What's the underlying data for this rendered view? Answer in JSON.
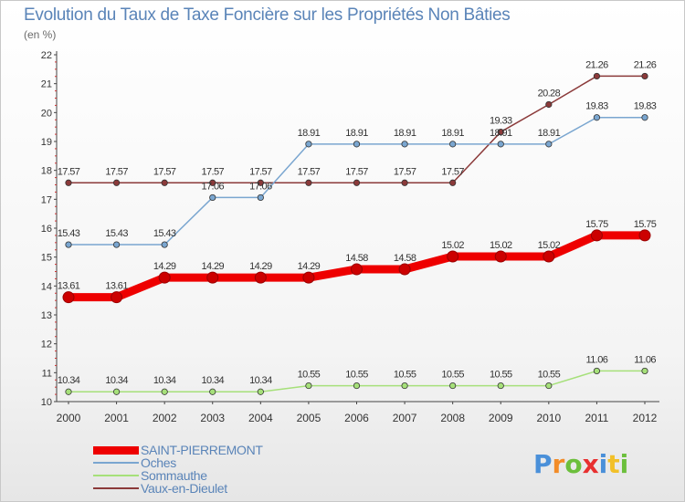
{
  "title": "Evolution du Taux de Taxe Foncière sur les Propriétés Non Bâties",
  "subtitle": "(en %)",
  "chart_data": {
    "type": "line",
    "title": "Evolution du Taux de Taxe Foncière sur les Propriétés Non Bâties",
    "ylabel": "(en %)",
    "xlabel": "",
    "x": [
      "2000",
      "2001",
      "2002",
      "2003",
      "2004",
      "2005",
      "2006",
      "2007",
      "2008",
      "2009",
      "2010",
      "2011",
      "2012"
    ],
    "ylim": [
      10,
      22
    ],
    "yticks": [
      "10",
      "11",
      "12",
      "13",
      "14",
      "15",
      "16",
      "17",
      "18",
      "19",
      "20",
      "21",
      "22"
    ],
    "grid": false,
    "legend_position": "bottom-left",
    "series": [
      {
        "name": "SAINT-PIERREMONT",
        "color": "#ee0000",
        "values": [
          13.61,
          13.61,
          14.29,
          14.29,
          14.29,
          14.29,
          14.58,
          14.58,
          15.02,
          15.02,
          15.02,
          15.75,
          15.75
        ],
        "labels": [
          "13.61",
          "13.61",
          "14.29",
          "14.29",
          "14.29",
          "14.29",
          "14.58",
          "14.58",
          "15.02",
          "15.02",
          "15.02",
          "15.75",
          "15.75"
        ]
      },
      {
        "name": "Oches",
        "color": "#7aa6d0",
        "values": [
          15.43,
          15.43,
          15.43,
          17.06,
          17.06,
          18.91,
          18.91,
          18.91,
          18.91,
          18.91,
          18.91,
          19.83,
          19.83
        ],
        "labels": [
          "15.43",
          "15.43",
          "15.43",
          "17.06",
          "17.06",
          "18.91",
          "18.91",
          "18.91",
          "18.91",
          "18.91",
          "18.91",
          "19.83",
          "19.83"
        ]
      },
      {
        "name": "Sommauthe",
        "color": "#a6e07a",
        "values": [
          10.34,
          10.34,
          10.34,
          10.34,
          10.34,
          10.55,
          10.55,
          10.55,
          10.55,
          10.55,
          10.55,
          11.06,
          11.06
        ],
        "labels": [
          "10.34",
          "10.34",
          "10.34",
          "10.34",
          "10.34",
          "10.55",
          "10.55",
          "10.55",
          "10.55",
          "10.55",
          "10.55",
          "11.06",
          "11.06"
        ]
      },
      {
        "name": "Vaux-en-Dieulet",
        "color": "#8b3a3a",
        "values": [
          17.57,
          17.57,
          17.57,
          17.57,
          17.57,
          17.57,
          17.57,
          17.57,
          17.57,
          19.33,
          20.28,
          21.26,
          21.26
        ],
        "labels": [
          "17.57",
          "17.57",
          "17.57",
          "17.57",
          "17.57",
          "17.57",
          "17.57",
          "17.57",
          "17.57",
          "19.33",
          "20.28",
          "21.26",
          "21.26"
        ]
      }
    ]
  },
  "logo": {
    "text": [
      "P",
      "r",
      "o",
      "x",
      "i",
      "t",
      "i"
    ],
    "colors": [
      "#4a90d9",
      "#f28c28",
      "#6cbf3c",
      "#e83030",
      "#4a90d9",
      "#f2c028",
      "#6cbf3c"
    ]
  }
}
